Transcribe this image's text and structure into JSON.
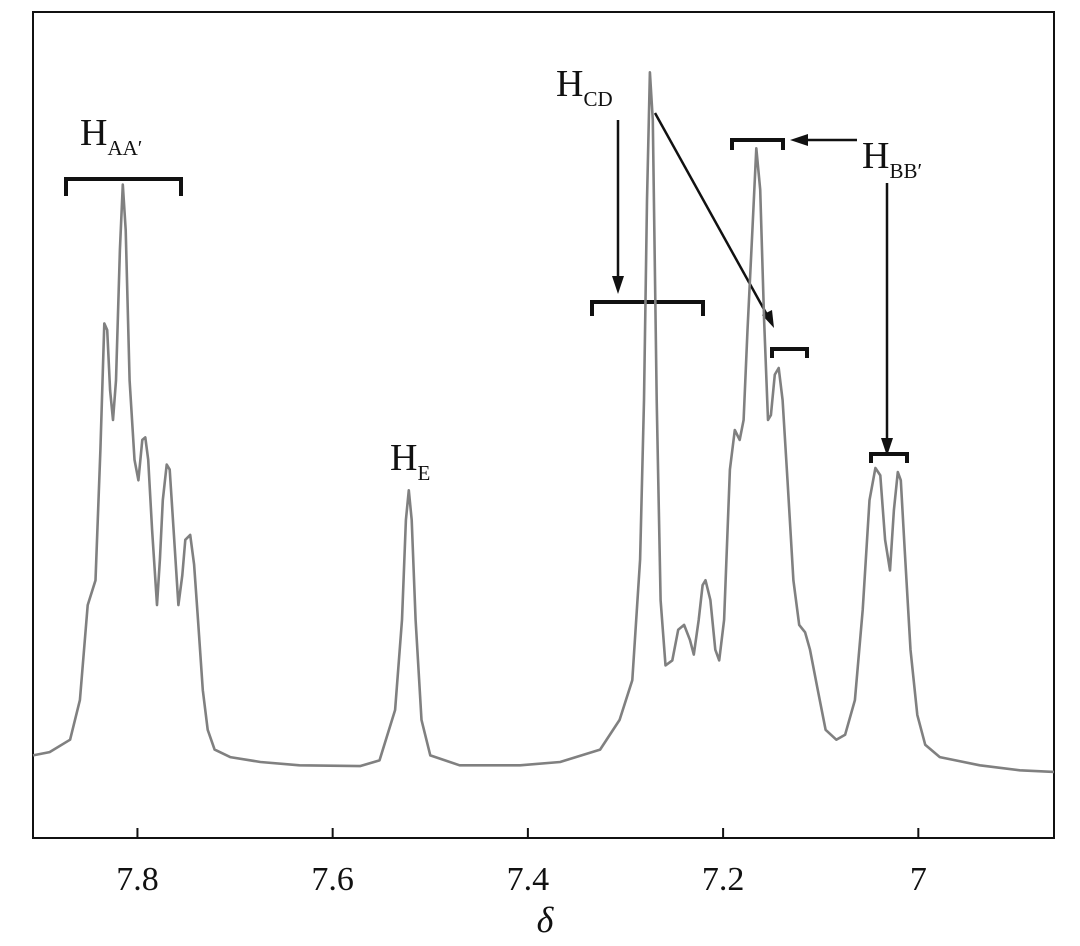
{
  "chart_data": {
    "type": "line",
    "x_label": "δ",
    "xlim": [
      7.907,
      6.861
    ],
    "xticks": [
      7.8,
      7.6,
      7.4,
      7.2,
      7.0
    ],
    "ylim": [
      0,
      100
    ],
    "annotations": [
      {
        "text": "H",
        "subscript": "AA′"
      },
      {
        "text": "H",
        "subscript": "E"
      },
      {
        "text": "H",
        "subscript": "CD"
      },
      {
        "text": "H",
        "subscript": "BB′"
      }
    ],
    "x": [
      7.907,
      7.89,
      7.869,
      7.859,
      7.851,
      7.843,
      7.838,
      7.834,
      7.831,
      7.828,
      7.825,
      7.822,
      7.818,
      7.815,
      7.812,
      7.808,
      7.803,
      7.799,
      7.795,
      7.792,
      7.789,
      7.785,
      7.78,
      7.777,
      7.774,
      7.77,
      7.767,
      7.763,
      7.758,
      7.754,
      7.751,
      7.746,
      7.742,
      7.738,
      7.733,
      7.728,
      7.721,
      7.705,
      7.674,
      7.634,
      7.572,
      7.552,
      7.536,
      7.529,
      7.525,
      7.522,
      7.519,
      7.515,
      7.509,
      7.5,
      7.47,
      7.408,
      7.367,
      7.326,
      7.306,
      7.293,
      7.285,
      7.281,
      7.278,
      7.275,
      7.272,
      7.268,
      7.264,
      7.259,
      7.252,
      7.246,
      7.24,
      7.234,
      7.23,
      7.225,
      7.221,
      7.218,
      7.213,
      7.208,
      7.204,
      7.199,
      7.193,
      7.188,
      7.183,
      7.179,
      7.175,
      7.17,
      7.166,
      7.162,
      7.158,
      7.154,
      7.151,
      7.147,
      7.143,
      7.139,
      7.134,
      7.128,
      7.122,
      7.116,
      7.111,
      7.103,
      7.095,
      7.084,
      7.075,
      7.065,
      7.057,
      7.05,
      7.044,
      7.039,
      7.034,
      7.029,
      7.025,
      7.021,
      7.018,
      7.014,
      7.008,
      7.001,
      6.993,
      6.978,
      6.937,
      6.896,
      6.861
    ],
    "series": [
      {
        "color": "#808080",
        "values": [
          10.0,
          10.4,
          11.9,
          16.7,
          28.2,
          31.2,
          47.0,
          62.3,
          61.5,
          54.2,
          50.6,
          55.4,
          71.2,
          79.1,
          73.6,
          55.4,
          45.8,
          43.3,
          48.2,
          48.5,
          45.8,
          37.3,
          28.2,
          33.7,
          40.9,
          45.2,
          44.6,
          37.3,
          28.2,
          31.8,
          36.1,
          36.7,
          33.1,
          26.4,
          17.9,
          13.1,
          10.7,
          9.8,
          9.2,
          8.8,
          8.7,
          9.4,
          15.5,
          26.4,
          38.5,
          42.1,
          38.5,
          26.4,
          14.3,
          10.0,
          8.8,
          8.8,
          9.2,
          10.7,
          14.3,
          19.1,
          33.7,
          53.0,
          77.2,
          92.7,
          86.9,
          53.0,
          28.8,
          20.9,
          21.5,
          25.2,
          25.8,
          24.0,
          22.2,
          26.4,
          30.6,
          31.2,
          28.8,
          22.8,
          21.5,
          26.4,
          44.6,
          49.4,
          48.2,
          50.6,
          61.5,
          73.6,
          83.5,
          78.5,
          62.7,
          50.6,
          51.2,
          56.1,
          56.9,
          53.0,
          43.3,
          31.2,
          25.8,
          24.9,
          22.8,
          17.9,
          13.1,
          11.9,
          12.5,
          16.7,
          27.6,
          40.9,
          44.8,
          43.9,
          36.1,
          32.4,
          39.7,
          44.3,
          43.3,
          34.9,
          22.8,
          14.9,
          11.3,
          9.8,
          8.8,
          8.2,
          8.0
        ]
      }
    ]
  }
}
